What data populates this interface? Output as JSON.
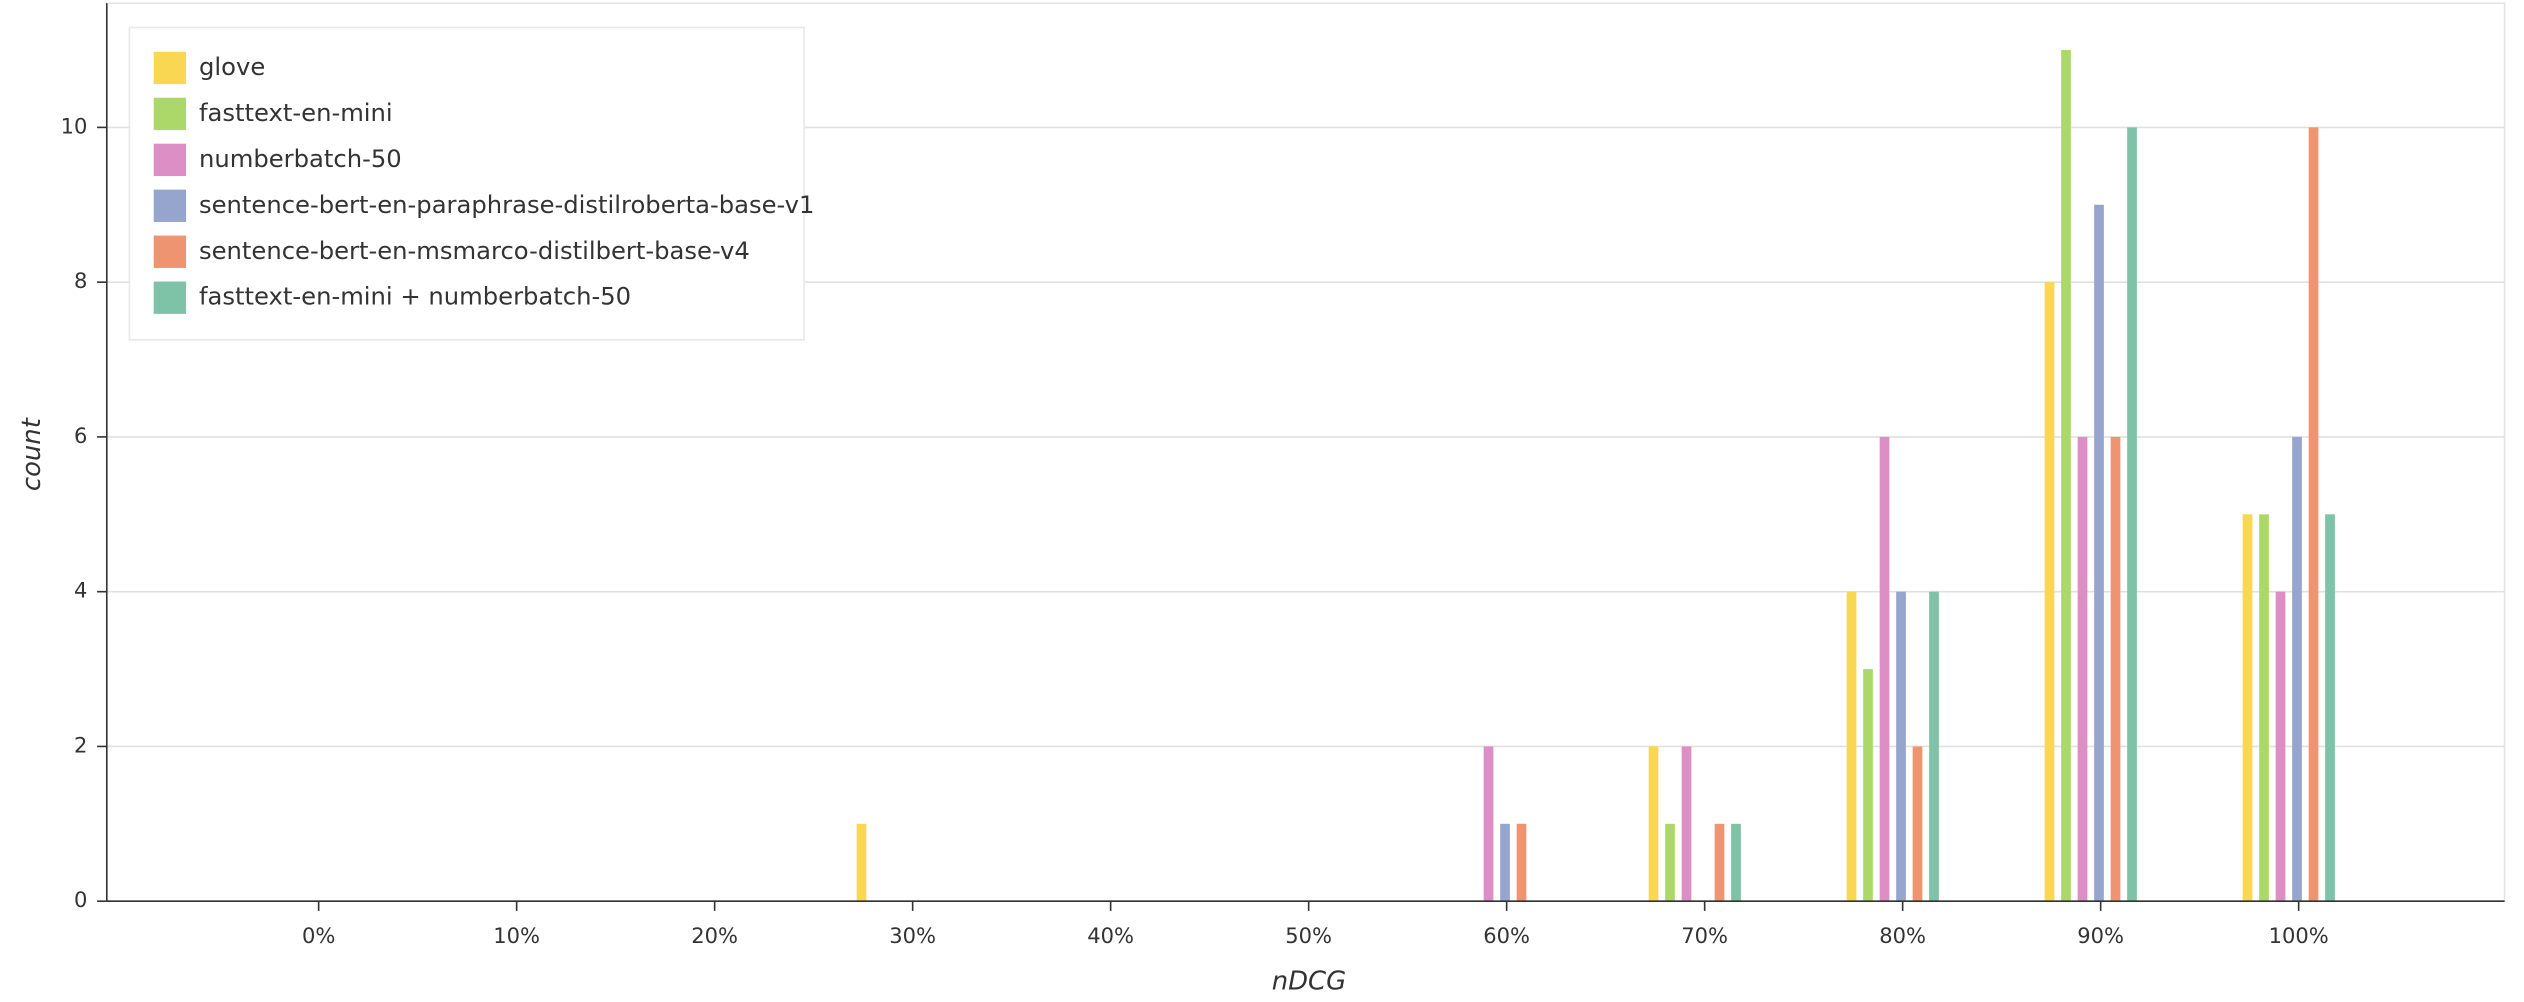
{
  "chart_data": {
    "type": "bar",
    "x_label": "nDCG",
    "y_label": "count",
    "x": [
      29.5,
      59.5,
      69.5,
      79.5,
      89.5,
      99.5
    ],
    "series": [
      {
        "name": "glove",
        "color": "#f9d752",
        "values": [
          1,
          null,
          2,
          4,
          8,
          5
        ]
      },
      {
        "name": "fasttext-en-mini",
        "color": "#acd86a",
        "values": [
          null,
          null,
          1,
          3,
          11,
          5
        ]
      },
      {
        "name": "numberbatch-50",
        "color": "#dd8ec5",
        "values": [
          null,
          2,
          2,
          6,
          6,
          4
        ]
      },
      {
        "name": "sentence-bert-en-paraphrase-distilroberta-base-v1",
        "color": "#96a5cd",
        "values": [
          null,
          1,
          null,
          4,
          9,
          6
        ]
      },
      {
        "name": "sentence-bert-en-msmarco-distilbert-base-v4",
        "color": "#ee9470",
        "values": [
          null,
          1,
          1,
          2,
          6,
          10
        ]
      },
      {
        "name": "fasttext-en-mini + numberbatch-50",
        "color": "#7ec2a8",
        "values": [
          null,
          null,
          1,
          4,
          10,
          5
        ]
      }
    ],
    "xlim": [
      -10.7,
      110.4
    ],
    "xticks": [
      {
        "value": 0,
        "label": "0%"
      },
      {
        "value": 10,
        "label": "10%"
      },
      {
        "value": 20,
        "label": "20%"
      },
      {
        "value": 30,
        "label": "30%"
      },
      {
        "value": 40,
        "label": "40%"
      },
      {
        "value": 50,
        "label": "50%"
      },
      {
        "value": 60,
        "label": "60%"
      },
      {
        "value": 70,
        "label": "70%"
      },
      {
        "value": 80,
        "label": "80%"
      },
      {
        "value": 90,
        "label": "90%"
      },
      {
        "value": 100,
        "label": "100%"
      }
    ],
    "ylim": [
      0,
      11.5
    ],
    "yticks": [
      0,
      2,
      4,
      6,
      8,
      10
    ],
    "grid": true,
    "legend": "top-left"
  }
}
